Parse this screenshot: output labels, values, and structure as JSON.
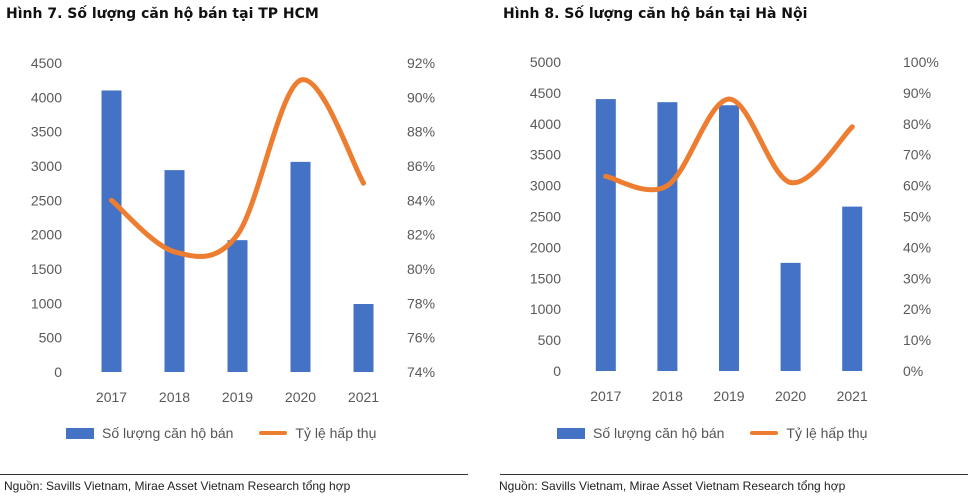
{
  "chart_data": [
    {
      "type": "bar",
      "title": "Hình 7. Số lượng căn hộ bán tại TP HCM",
      "categories": [
        "2017",
        "2018",
        "2019",
        "2020",
        "2021"
      ],
      "series": [
        {
          "name": "Số lượng căn hộ bán",
          "type": "bar",
          "axis": "left",
          "values": [
            4100,
            2940,
            1920,
            3060,
            990
          ]
        },
        {
          "name": "Tỷ lệ hấp thụ",
          "type": "line",
          "axis": "right",
          "smooth": true,
          "values": [
            84,
            81,
            82,
            91,
            85
          ]
        }
      ],
      "ylim": [
        0,
        4500
      ],
      "yticks": [
        "4500",
        "4000",
        "3500",
        "3000",
        "2500",
        "2000",
        "1500",
        "1000",
        "500",
        "0"
      ],
      "y2lim": [
        74,
        92
      ],
      "y2ticks": [
        "92%",
        "90%",
        "88%",
        "86%",
        "84%",
        "82%",
        "80%",
        "78%",
        "76%",
        "74%"
      ],
      "legend": [
        "Số lượng căn hộ bán",
        "Tỷ lệ hấp thụ"
      ],
      "source": "Nguồn: Savills Vietnam, Mirae Asset Vietnam Research tổng hợp",
      "colors": {
        "bar": "#4472C4",
        "line": "#ED7D31"
      }
    },
    {
      "type": "bar",
      "title": "Hình 8. Số lượng căn hộ bán tại Hà Nội",
      "categories": [
        "2017",
        "2018",
        "2019",
        "2020",
        "2021"
      ],
      "series": [
        {
          "name": "Số lượng căn hộ bán",
          "type": "bar",
          "axis": "left",
          "values": [
            4400,
            4350,
            4300,
            1750,
            2660
          ]
        },
        {
          "name": "Tỷ lệ hấp thụ",
          "type": "line",
          "axis": "right",
          "smooth": true,
          "values": [
            63,
            60,
            88,
            61,
            79
          ]
        }
      ],
      "ylim": [
        0,
        5000
      ],
      "yticks": [
        "5000",
        "4500",
        "4000",
        "3500",
        "3000",
        "2500",
        "2000",
        "1500",
        "1000",
        "500",
        "0"
      ],
      "y2lim": [
        0,
        100
      ],
      "y2ticks": [
        "100%",
        "90%",
        "80%",
        "70%",
        "60%",
        "50%",
        "40%",
        "30%",
        "20%",
        "10%",
        "0%"
      ],
      "legend": [
        "Số lượng căn hộ bán",
        "Tỷ lệ hấp thụ"
      ],
      "source": "Nguồn: Savills Vietnam, Mirae Asset Vietnam Research tổng hợp",
      "colors": {
        "bar": "#4472C4",
        "line": "#ED7D31"
      }
    }
  ]
}
